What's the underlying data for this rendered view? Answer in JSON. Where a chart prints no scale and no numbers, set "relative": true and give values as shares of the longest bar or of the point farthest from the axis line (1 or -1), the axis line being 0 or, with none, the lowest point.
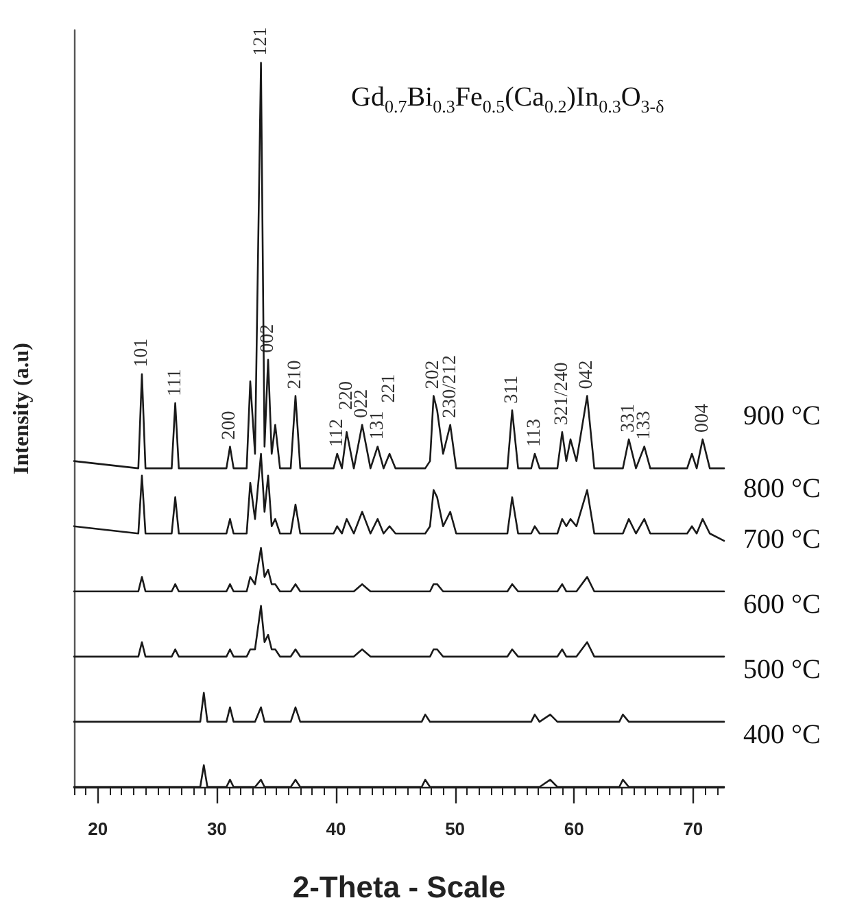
{
  "chart_data": {
    "type": "line",
    "relative": true,
    "title": "Gd$_{0.7}$Bi$_{0.3}$Fe$_{0.5}$(Ca$_{0.2}$)In$_{0.3}$O$_{3-δ}$",
    "xlabel": "2-Theta - Scale",
    "ylabel": "Intensity (a.u)",
    "xlim": [
      18,
      72.6
    ],
    "xticks": [
      20,
      30,
      40,
      50,
      60,
      70
    ],
    "grid": false,
    "legend": false,
    "marker": "none",
    "line_style": "solid",
    "x": [
      18.0,
      23.4,
      23.7,
      24.0,
      26.2,
      26.5,
      26.8,
      28.6,
      28.9,
      29.2,
      30.8,
      31.1,
      31.4,
      32.5,
      32.8,
      33.2,
      33.7,
      34.0,
      34.3,
      34.6,
      34.9,
      35.3,
      36.2,
      36.6,
      37.0,
      39.8,
      40.1,
      40.5,
      40.9,
      41.5,
      42.2,
      42.9,
      43.5,
      44.0,
      44.5,
      45.0,
      47.2,
      47.5,
      47.9,
      48.2,
      48.5,
      49.0,
      49.6,
      50.1,
      54.4,
      54.8,
      55.3,
      56.4,
      56.7,
      57.1,
      58.0,
      58.6,
      59.0,
      59.35,
      59.7,
      60.2,
      61.1,
      61.7,
      63.8,
      64.1,
      64.6,
      65.2,
      65.9,
      66.4,
      69.5,
      69.9,
      70.3,
      70.8,
      71.4,
      72.6
    ],
    "series": [
      {
        "name": "900 °C",
        "color": "#1a1a1a",
        "values": [
          0.45,
          0.44,
          0.57,
          0.44,
          0.44,
          0.53,
          0.44,
          0.44,
          0.44,
          0.44,
          0.44,
          0.47,
          0.44,
          0.44,
          0.56,
          0.46,
          1,
          0.47,
          0.59,
          0.46,
          0.5,
          0.44,
          0.44,
          0.54,
          0.44,
          0.44,
          0.46,
          0.44,
          0.49,
          0.44,
          0.5,
          0.44,
          0.47,
          0.44,
          0.46,
          0.44,
          0.44,
          0.44,
          0.45,
          0.54,
          0.52,
          0.46,
          0.5,
          0.44,
          0.44,
          0.52,
          0.44,
          0.44,
          0.46,
          0.44,
          0.44,
          0.44,
          0.49,
          0.45,
          0.48,
          0.45,
          0.54,
          0.44,
          0.44,
          0.44,
          0.48,
          0.44,
          0.47,
          0.44,
          0.44,
          0.46,
          0.44,
          0.48,
          0.44,
          0.44
        ]
      },
      {
        "name": "800 °C",
        "color": "#1a1a1a",
        "values": [
          0.36,
          0.35,
          0.43,
          0.35,
          0.35,
          0.4,
          0.35,
          0.35,
          0.35,
          0.35,
          0.35,
          0.37,
          0.35,
          0.35,
          0.42,
          0.37,
          0.46,
          0.38,
          0.43,
          0.36,
          0.37,
          0.35,
          0.35,
          0.39,
          0.35,
          0.35,
          0.36,
          0.35,
          0.37,
          0.35,
          0.38,
          0.35,
          0.37,
          0.35,
          0.36,
          0.35,
          0.35,
          0.35,
          0.36,
          0.41,
          0.4,
          0.36,
          0.38,
          0.35,
          0.35,
          0.4,
          0.35,
          0.35,
          0.36,
          0.35,
          0.35,
          0.35,
          0.37,
          0.36,
          0.37,
          0.36,
          0.41,
          0.35,
          0.35,
          0.35,
          0.37,
          0.35,
          0.37,
          0.35,
          0.35,
          0.36,
          0.35,
          0.37,
          0.35,
          0.34
        ]
      },
      {
        "name": "700 °C",
        "color": "#1a1a1a",
        "values": [
          0.27,
          0.27,
          0.29,
          0.27,
          0.27,
          0.28,
          0.27,
          0.27,
          0.27,
          0.27,
          0.27,
          0.28,
          0.27,
          0.27,
          0.29,
          0.28,
          0.33,
          0.29,
          0.3,
          0.28,
          0.28,
          0.27,
          0.27,
          0.28,
          0.27,
          0.27,
          0.27,
          0.27,
          0.27,
          0.27,
          0.28,
          0.27,
          0.27,
          0.27,
          0.27,
          0.27,
          0.27,
          0.27,
          0.27,
          0.28,
          0.28,
          0.27,
          0.27,
          0.27,
          0.27,
          0.28,
          0.27,
          0.27,
          0.27,
          0.27,
          0.27,
          0.27,
          0.28,
          0.27,
          0.27,
          0.27,
          0.29,
          0.27,
          0.27,
          0.27,
          0.27,
          0.27,
          0.27,
          0.27,
          0.27,
          0.27,
          0.27,
          0.27,
          0.27,
          0.27
        ]
      },
      {
        "name": "600 °C",
        "color": "#1a1a1a",
        "values": [
          0.18,
          0.18,
          0.2,
          0.18,
          0.18,
          0.19,
          0.18,
          0.18,
          0.18,
          0.18,
          0.18,
          0.19,
          0.18,
          0.18,
          0.19,
          0.19,
          0.25,
          0.2,
          0.21,
          0.19,
          0.19,
          0.18,
          0.18,
          0.19,
          0.18,
          0.18,
          0.18,
          0.18,
          0.18,
          0.18,
          0.19,
          0.18,
          0.18,
          0.18,
          0.18,
          0.18,
          0.18,
          0.18,
          0.18,
          0.19,
          0.19,
          0.18,
          0.18,
          0.18,
          0.18,
          0.19,
          0.18,
          0.18,
          0.18,
          0.18,
          0.18,
          0.18,
          0.19,
          0.18,
          0.18,
          0.18,
          0.2,
          0.18,
          0.18,
          0.18,
          0.18,
          0.18,
          0.18,
          0.18,
          0.18,
          0.18,
          0.18,
          0.18,
          0.18,
          0.18
        ]
      },
      {
        "name": "500 °C",
        "color": "#1a1a1a",
        "values": [
          0.09,
          0.09,
          0.09,
          0.09,
          0.09,
          0.09,
          0.09,
          0.09,
          0.13,
          0.09,
          0.09,
          0.11,
          0.09,
          0.09,
          0.09,
          0.09,
          0.11,
          0.09,
          0.09,
          0.09,
          0.09,
          0.09,
          0.09,
          0.11,
          0.09,
          0.09,
          0.09,
          0.09,
          0.09,
          0.09,
          0.09,
          0.09,
          0.09,
          0.09,
          0.09,
          0.09,
          0.09,
          0.1,
          0.09,
          0.09,
          0.09,
          0.09,
          0.09,
          0.09,
          0.09,
          0.09,
          0.09,
          0.09,
          0.1,
          0.09,
          0.1,
          0.09,
          0.09,
          0.09,
          0.09,
          0.09,
          0.09,
          0.09,
          0.09,
          0.1,
          0.09,
          0.09,
          0.09,
          0.09,
          0.09,
          0.09,
          0.09,
          0.09,
          0.09,
          0.09
        ]
      },
      {
        "name": "400 °C",
        "color": "#1a1a1a",
        "values": [
          0,
          0,
          0,
          0,
          0,
          0,
          0,
          0,
          0.03,
          0,
          0,
          0.01,
          0,
          0,
          0,
          0,
          0.01,
          0,
          0,
          0,
          0,
          0,
          0,
          0.01,
          0,
          0,
          0,
          0,
          0,
          0,
          0,
          0,
          0,
          0,
          0,
          0,
          0,
          0.01,
          0,
          0,
          0,
          0,
          0,
          0,
          0,
          0,
          0,
          0,
          0,
          0,
          0.01,
          0,
          0,
          0,
          0,
          0,
          0,
          0,
          0,
          0.01,
          0,
          0,
          0,
          0,
          0,
          0,
          0,
          0,
          0,
          0
        ]
      }
    ],
    "annotations": [
      {
        "text": "101",
        "x": 23.7,
        "y": 0.57
      },
      {
        "text": "111",
        "x": 26.5,
        "y": 0.53
      },
      {
        "text": "200",
        "x": 31.1,
        "y": 0.47
      },
      {
        "text": "121",
        "x": 33.7,
        "y": 1
      },
      {
        "text": "002",
        "x": 34.3,
        "y": 0.59
      },
      {
        "text": "210",
        "x": 36.6,
        "y": 0.54
      },
      {
        "text": "112",
        "x": 40.1,
        "y": 0.46
      },
      {
        "text": "220",
        "x": 40.9,
        "y": 0.49
      },
      {
        "text": "022",
        "x": 42.2,
        "y": 0.5
      },
      {
        "text": "221",
        "x": 44.5,
        "y": 0.46
      },
      {
        "text": "131",
        "x": 43.5,
        "y": 0.47
      },
      {
        "text": "202",
        "x": 48.2,
        "y": 0.54
      },
      {
        "text": "230/212",
        "x": 49.6,
        "y": 0.5
      },
      {
        "text": "311",
        "x": 54.8,
        "y": 0.52
      },
      {
        "text": "113",
        "x": 56.7,
        "y": 0.46
      },
      {
        "text": "321/240",
        "x": 59.0,
        "y": 0.49
      },
      {
        "text": "042",
        "x": 61.1,
        "y": 0.54
      },
      {
        "text": "331",
        "x": 64.6,
        "y": 0.48
      },
      {
        "text": "133",
        "x": 65.9,
        "y": 0.47
      },
      {
        "text": "004",
        "x": 70.8,
        "y": 0.48
      }
    ]
  }
}
